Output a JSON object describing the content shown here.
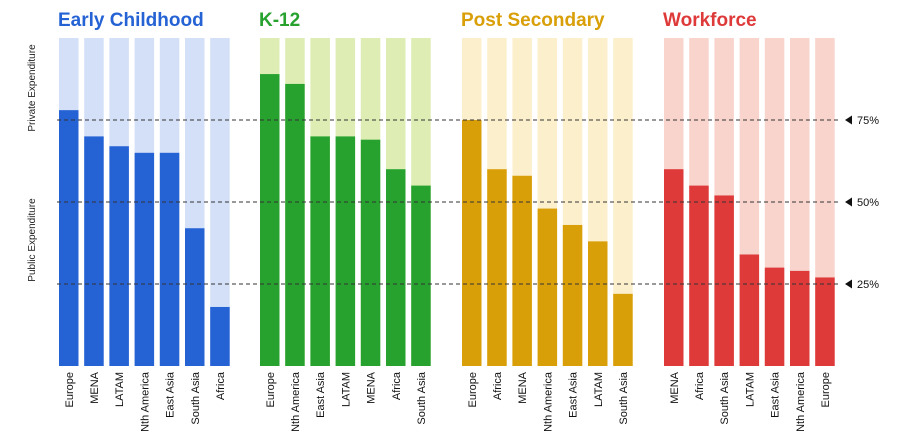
{
  "chart_data": {
    "type": "bar",
    "ylim": [
      0,
      100
    ],
    "y_axis_labels": {
      "top": "Private Expenditure",
      "bottom": "Public Expenditure"
    },
    "reference_lines": [
      {
        "value": 75,
        "label": "75%"
      },
      {
        "value": 50,
        "label": "50%"
      },
      {
        "value": 25,
        "label": "25%"
      }
    ],
    "panels": [
      {
        "title": "Early Childhood",
        "color": "#2563d4",
        "bg_color": "#d4e0f7",
        "categories": [
          "Europe",
          "MENA",
          "LATAM",
          "Nth America",
          "East Asia",
          "South Asia",
          "Africa"
        ],
        "values": [
          78,
          70,
          67,
          65,
          65,
          42,
          18
        ]
      },
      {
        "title": "K-12",
        "color": "#27a22f",
        "bg_color": "#deedb4",
        "categories": [
          "Europe",
          "Nth America",
          "East Asia",
          "LATAM",
          "MENA",
          "Africa",
          "South Asia"
        ],
        "values": [
          89,
          86,
          70,
          70,
          69,
          60,
          55
        ]
      },
      {
        "title": "Post Secondary",
        "color": "#d99f09",
        "bg_color": "#fcefcc",
        "categories": [
          "Europe",
          "Africa",
          "MENA",
          "Nth America",
          "East Asia",
          "LATAM",
          "South Asia"
        ],
        "values": [
          75,
          60,
          58,
          48,
          43,
          38,
          22
        ]
      },
      {
        "title": "Workforce",
        "color": "#de3a3a",
        "bg_color": "#f8d4cd",
        "categories": [
          "MENA",
          "Africa",
          "South Asia",
          "LATAM",
          "East Asia",
          "Nth America",
          "Europe"
        ],
        "values": [
          60,
          55,
          52,
          34,
          30,
          29,
          27
        ]
      }
    ]
  }
}
